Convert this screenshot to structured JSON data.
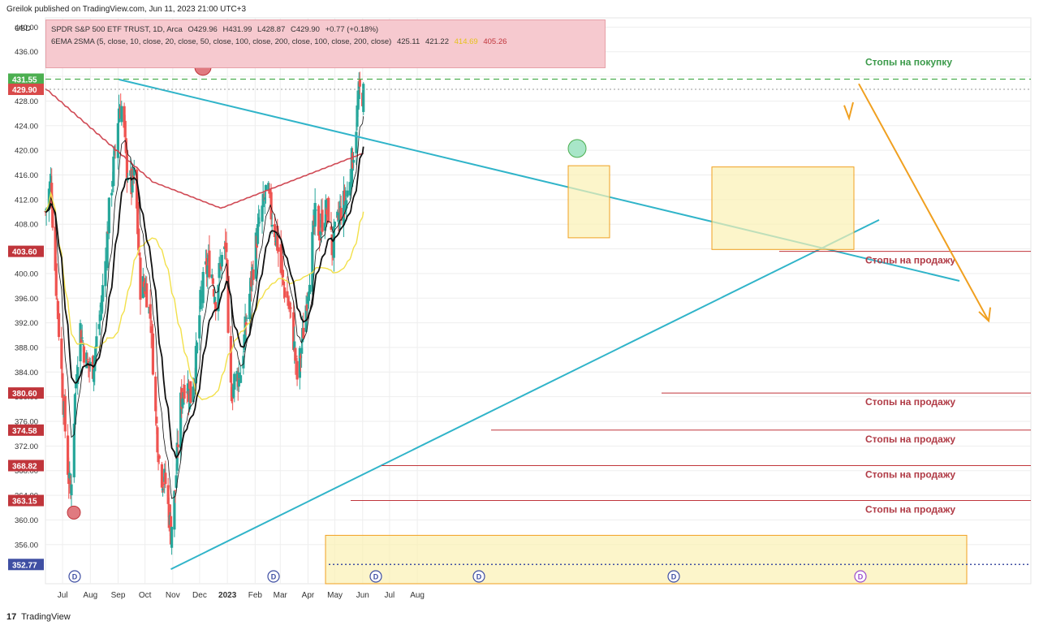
{
  "header": {
    "publisher_text": "Greilok published on TradingView.com, Jun 11, 2023 21:00 UTC+3"
  },
  "legend": {
    "symbol": "SPDR S&P 500 ETF TRUST, 1D, Arca",
    "ohlc": {
      "o": "O429.96",
      "h": "H431.99",
      "l": "L428.87",
      "c": "C429.90",
      "chg": "+0.77 (+0.18%)"
    },
    "ma_label": "6EMA 2SMA (5, close, 10, close, 20, close, 50, close, 100, close, 200, close, 100, close, 200, close)",
    "ma_values": [
      "425.11",
      "421.22",
      "414.69",
      "405.26"
    ],
    "ma_value_colors": [
      "#333333",
      "#333333",
      "#e6c21a",
      "#c0353b"
    ]
  },
  "chart_data": {
    "type": "candlestick",
    "currency_label": "USD",
    "y_ticks": [
      "440.00",
      "436.00",
      "432.00",
      "428.00",
      "424.00",
      "420.00",
      "416.00",
      "412.00",
      "408.00",
      "404.00",
      "400.00",
      "396.00",
      "392.00",
      "388.00",
      "384.00",
      "380.00",
      "376.00",
      "372.00",
      "368.00",
      "364.00",
      "360.00",
      "356.00"
    ],
    "x_labels": [
      "Jul",
      "Aug",
      "Sep",
      "Oct",
      "Nov",
      "Dec",
      "2023",
      "Feb",
      "Mar",
      "Apr",
      "May",
      "Jun",
      "Jul",
      "Aug"
    ],
    "ylim": [
      352,
      440
    ],
    "price_tags": [
      {
        "value": 431.55,
        "label": "431.55",
        "color": "#4caf50"
      },
      {
        "value": 429.9,
        "label": "429.90",
        "color": "#d94a4a"
      },
      {
        "value": 403.6,
        "label": "403.60",
        "color": "#c0353b"
      },
      {
        "value": 380.6,
        "label": "380.60",
        "color": "#c0353b"
      },
      {
        "value": 374.58,
        "label": "374.58",
        "color": "#c0353b"
      },
      {
        "value": 368.82,
        "label": "368.82",
        "color": "#c0353b"
      },
      {
        "value": 363.15,
        "label": "363.15",
        "color": "#c0353b"
      },
      {
        "value": 352.77,
        "label": "352.77",
        "color": "#3f4fa3"
      }
    ],
    "stop_levels": [
      {
        "value": 403.6,
        "label": "Стопы на продажу"
      },
      {
        "value": 380.6,
        "label": "Стопы на продажу"
      },
      {
        "value": 374.58,
        "label": "Стопы на продажу"
      },
      {
        "value": 368.82,
        "label": "Стопы на продажу"
      },
      {
        "value": 363.15,
        "label": "Стопы на продажу"
      }
    ],
    "buy_stop": {
      "value": 431.55,
      "label": "Стопы на покупку"
    },
    "event_markers": [
      "D",
      "D",
      "D",
      "D",
      "D",
      "D"
    ],
    "colors": {
      "up": "#26a69a",
      "down": "#ef5350",
      "ma_fast": "#111111",
      "ma_yellow": "#f2e04a",
      "ma_red": "#d04a55",
      "trend_cyan": "#30b4c9",
      "projection": "#f0a020",
      "zone_fill": "#fbf1b4",
      "zone_stroke": "#f0a020",
      "grid": "#eeeeee",
      "axis_text": "#333333"
    }
  },
  "footer": {
    "logo_mark": "17",
    "brand": "TradingView"
  }
}
